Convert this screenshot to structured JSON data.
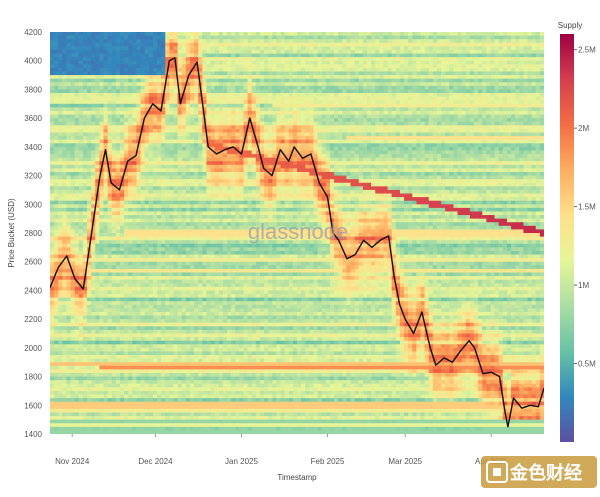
{
  "watermark": "glassnode",
  "corner_badge": "金色财经",
  "chart_data": {
    "type": "heatmap",
    "xlabel": "Timestamp",
    "ylabel": "Price Bucket (USD)",
    "ylim": [
      1400,
      4200
    ],
    "y_ticks": [
      1400,
      1600,
      1800,
      2000,
      2200,
      2400,
      2600,
      2800,
      3000,
      3200,
      3400,
      3600,
      3800,
      4000,
      4200
    ],
    "x_range": [
      "2024-10-24",
      "2025-04-20"
    ],
    "x_ticks": [
      {
        "date": "2024-11-01",
        "label": "Nov 2024"
      },
      {
        "date": "2024-12-01",
        "label": "Dec 2024"
      },
      {
        "date": "2025-01-01",
        "label": "Jan 2025"
      },
      {
        "date": "2025-02-01",
        "label": "Feb 2025"
      },
      {
        "date": "2025-03-01",
        "label": "Mar 2025"
      },
      {
        "date": "2025-04-01",
        "label": "Apr 2025"
      }
    ],
    "colorbar": {
      "title": "Supply",
      "range": [
        0,
        2600000
      ],
      "ticks": [
        {
          "value": 500000,
          "label": "0.5M"
        },
        {
          "value": 1000000,
          "label": "1M"
        },
        {
          "value": 1500000,
          "label": "1.5M"
        },
        {
          "value": 2000000,
          "label": "2M"
        },
        {
          "value": 2500000,
          "label": "2.5M"
        }
      ],
      "colors": [
        "#5e4fa2",
        "#3288bd",
        "#66c2a5",
        "#abdda4",
        "#e6f598",
        "#fee08b",
        "#fdae61",
        "#f46d43",
        "#d53e4f",
        "#9e0142"
      ]
    },
    "price_line": {
      "color": "#111111",
      "points": [
        [
          "2024-10-24",
          2420
        ],
        [
          "2024-10-27",
          2560
        ],
        [
          "2024-10-30",
          2640
        ],
        [
          "2024-11-02",
          2480
        ],
        [
          "2024-11-05",
          2410
        ],
        [
          "2024-11-08",
          2800
        ],
        [
          "2024-11-11",
          3200
        ],
        [
          "2024-11-13",
          3380
        ],
        [
          "2024-11-15",
          3150
        ],
        [
          "2024-11-18",
          3100
        ],
        [
          "2024-11-21",
          3300
        ],
        [
          "2024-11-24",
          3340
        ],
        [
          "2024-11-27",
          3600
        ],
        [
          "2024-11-30",
          3700
        ],
        [
          "2024-12-03",
          3650
        ],
        [
          "2024-12-06",
          4000
        ],
        [
          "2024-12-08",
          4020
        ],
        [
          "2024-12-10",
          3700
        ],
        [
          "2024-12-13",
          3900
        ],
        [
          "2024-12-16",
          3990
        ],
        [
          "2024-12-18",
          3700
        ],
        [
          "2024-12-20",
          3400
        ],
        [
          "2024-12-23",
          3350
        ],
        [
          "2024-12-26",
          3380
        ],
        [
          "2024-12-29",
          3400
        ],
        [
          "2025-01-01",
          3350
        ],
        [
          "2025-01-04",
          3600
        ],
        [
          "2025-01-07",
          3400
        ],
        [
          "2025-01-09",
          3250
        ],
        [
          "2025-01-12",
          3200
        ],
        [
          "2025-01-15",
          3380
        ],
        [
          "2025-01-18",
          3300
        ],
        [
          "2025-01-20",
          3400
        ],
        [
          "2025-01-23",
          3320
        ],
        [
          "2025-01-26",
          3350
        ],
        [
          "2025-01-29",
          3150
        ],
        [
          "2025-02-01",
          3050
        ],
        [
          "2025-02-03",
          2800
        ],
        [
          "2025-02-05",
          2750
        ],
        [
          "2025-02-08",
          2620
        ],
        [
          "2025-02-11",
          2650
        ],
        [
          "2025-02-14",
          2750
        ],
        [
          "2025-02-17",
          2700
        ],
        [
          "2025-02-20",
          2750
        ],
        [
          "2025-02-23",
          2780
        ],
        [
          "2025-02-25",
          2500
        ],
        [
          "2025-02-27",
          2300
        ],
        [
          "2025-03-01",
          2200
        ],
        [
          "2025-03-04",
          2100
        ],
        [
          "2025-03-07",
          2250
        ],
        [
          "2025-03-10",
          2000
        ],
        [
          "2025-03-12",
          1880
        ],
        [
          "2025-03-15",
          1930
        ],
        [
          "2025-03-18",
          1900
        ],
        [
          "2025-03-21",
          1980
        ],
        [
          "2025-03-24",
          2050
        ],
        [
          "2025-03-26",
          2000
        ],
        [
          "2025-03-29",
          1820
        ],
        [
          "2025-04-01",
          1830
        ],
        [
          "2025-04-04",
          1800
        ],
        [
          "2025-04-06",
          1550
        ],
        [
          "2025-04-07",
          1450
        ],
        [
          "2025-04-09",
          1650
        ],
        [
          "2025-04-12",
          1580
        ],
        [
          "2025-04-15",
          1600
        ],
        [
          "2025-04-18",
          1590
        ],
        [
          "2025-04-20",
          1720
        ]
      ]
    }
  }
}
